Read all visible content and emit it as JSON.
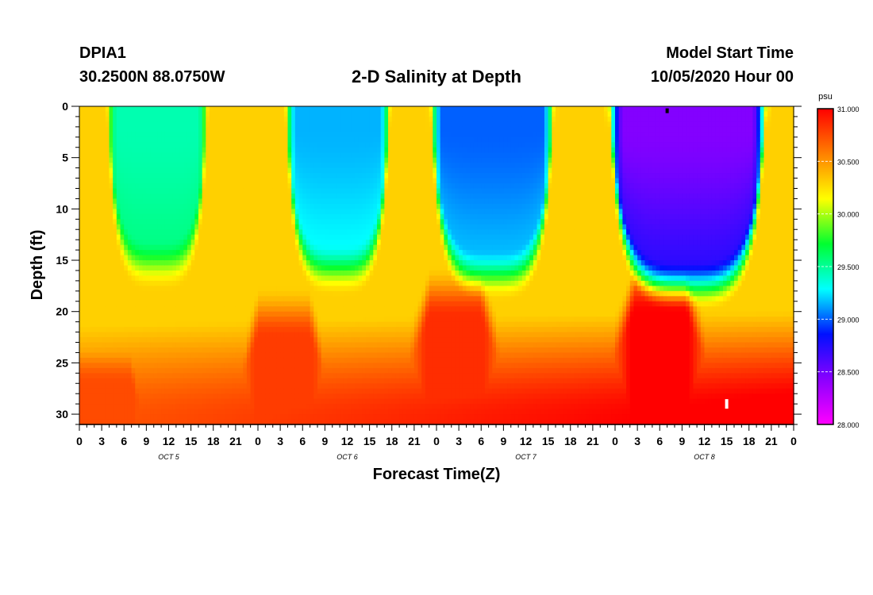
{
  "header": {
    "station_id": "DPIA1",
    "coordinates": "30.2500N 88.0750W",
    "title": "2-D Salinity at Depth",
    "model_start_label": "Model Start Time",
    "model_start_value": "10/05/2020 Hour 00"
  },
  "chart_data": {
    "type": "heatmap",
    "title": "2-D Salinity at Depth",
    "xlabel": "Forecast Time(Z)",
    "ylabel": "Depth (ft)",
    "x_range_hours": [
      0,
      96
    ],
    "x_tick_labels": [
      "0",
      "3",
      "6",
      "9",
      "12",
      "15",
      "18",
      "21",
      "0",
      "3",
      "6",
      "9",
      "12",
      "15",
      "18",
      "21",
      "0",
      "3",
      "6",
      "9",
      "12",
      "15",
      "18",
      "21",
      "0",
      "3",
      "6",
      "9",
      "12",
      "15",
      "18",
      "21",
      "0"
    ],
    "day_labels": [
      {
        "label": "OCT 5",
        "hour": 12
      },
      {
        "label": "OCT 6",
        "hour": 36
      },
      {
        "label": "OCT 7",
        "hour": 60
      },
      {
        "label": "OCT 8",
        "hour": 84
      }
    ],
    "y_range": [
      0,
      31
    ],
    "y_ticks": [
      0,
      5,
      10,
      15,
      20,
      25,
      30
    ],
    "colorbar": {
      "unit": "psu",
      "range": [
        28.0,
        31.0
      ],
      "tick_labels": [
        "31.000",
        "30.500",
        "30.000",
        "29.500",
        "29.000",
        "28.500",
        "28.000"
      ],
      "colors": [
        "#ff00ff",
        "#8a00ff",
        "#0010ff",
        "#00ffff",
        "#00ff30",
        "#ffff00",
        "#ff8000",
        "#ff0000"
      ]
    },
    "low_salinity_cells": [
      {
        "t_start": 4,
        "t_end": 17,
        "t_center": 11,
        "bottom_depth": 15.5,
        "min_value": 29.45
      },
      {
        "t_start": 28,
        "t_end": 41.5,
        "t_center": 35,
        "bottom_depth": 16,
        "min_value": 29.15
      },
      {
        "t_start": 47.5,
        "t_end": 63.5,
        "t_center": 56,
        "bottom_depth": 16.5,
        "min_value": 29.0
      },
      {
        "t_start": 71.5,
        "t_end": 92,
        "t_center": 80,
        "bottom_depth": 17.5,
        "min_value": 28.45
      }
    ],
    "high_salinity_bumps": [
      {
        "t_center": 3.5,
        "top_depth": 24.5,
        "max_value": 30.75
      },
      {
        "t_center": 27.5,
        "top_depth": 20,
        "max_value": 30.8
      },
      {
        "t_center": 50.5,
        "top_depth": 18,
        "max_value": 30.85
      },
      {
        "t_center": 78,
        "top_depth": 17.5,
        "max_value": 31.0
      }
    ],
    "markers": [
      {
        "hour": 79,
        "depth": 0.2,
        "color": "#000000"
      },
      {
        "hour": 87,
        "depth": 29,
        "color": "#ffffff"
      }
    ]
  }
}
